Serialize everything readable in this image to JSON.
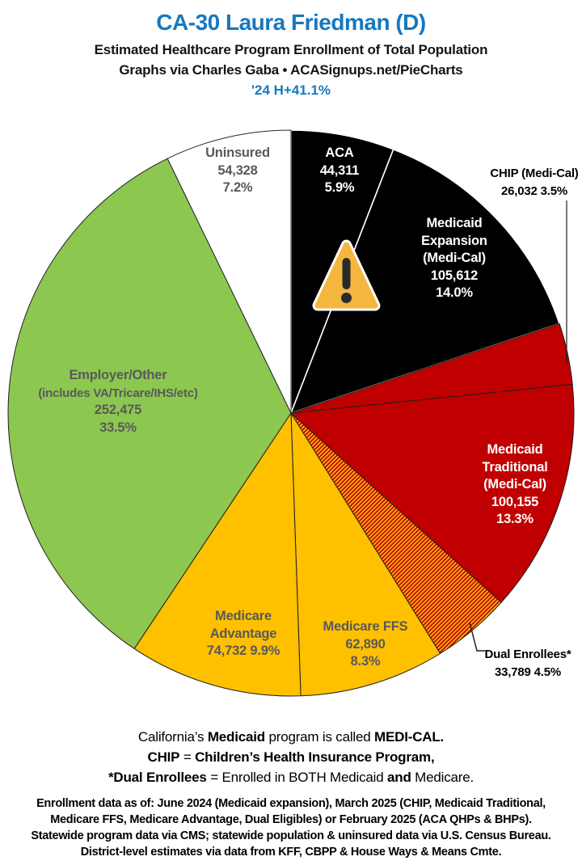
{
  "header": {
    "title": "CA-30 Laura Friedman (D)",
    "subtitle": "Estimated Healthcare Program Enrollment of Total Population",
    "credit": "Graphs via Charles Gaba • ACASignups.net/PieCharts",
    "partisan_lean": "'24 H+41.1%"
  },
  "chart_data": {
    "type": "pie",
    "title": "Estimated Healthcare Program Enrollment of Total Population",
    "units": "people",
    "direction": "clockwise",
    "start_angle_deg": 0,
    "legend_position": "labels-on-slices",
    "palette": {
      "black": "#000000",
      "red": "#C00000",
      "gold": "#FFC000",
      "green": "#8CC750",
      "white": "#FFFFFF",
      "label_gray": "#595959"
    },
    "slices": [
      {
        "id": "aca",
        "name": "ACA",
        "value": 44311,
        "pct": 5.9,
        "color": "#000000",
        "stroke": "#FFFFFF",
        "stroke_width": 1.6,
        "lines": [
          "ACA",
          "44,311",
          "5.9%"
        ]
      },
      {
        "id": "medicaid-expansion",
        "name": "Medicaid Expansion (Medi-Cal)",
        "value": 105612,
        "pct": 14.0,
        "color": "#000000",
        "stroke": "#FFFFFF",
        "stroke_width": 1.6,
        "lines": [
          "Medicaid",
          "Expansion",
          "(Medi-Cal)",
          "105,612",
          "14.0%"
        ]
      },
      {
        "id": "chip",
        "name": "CHIP (Medi-Cal)",
        "value": 26032,
        "pct": 3.5,
        "color": "#C00000",
        "stroke": "#1F1F1F",
        "stroke_width": 1,
        "label_outside": true,
        "lines": [
          "CHIP (Medi-Cal)",
          "26,032 3.5%"
        ]
      },
      {
        "id": "medicaid-traditional",
        "name": "Medicaid Traditional (Medi-Cal)",
        "value": 100155,
        "pct": 13.3,
        "color": "#C00000",
        "stroke": "#1F1F1F",
        "stroke_width": 1,
        "lines": [
          "Medicaid",
          "Traditional",
          "(Medi-Cal)",
          "100,155",
          "13.3%"
        ]
      },
      {
        "id": "dual-enrollees",
        "name": "Dual Enrollees*",
        "value": 33789,
        "pct": 4.5,
        "color": "#C00000",
        "pattern": "diagonal-stripes-gold",
        "stroke": "#1F1F1F",
        "stroke_width": 1,
        "label_outside": true,
        "lines": [
          "Dual Enrollees*",
          "33,789 4.5%"
        ]
      },
      {
        "id": "medicare-ffs",
        "name": "Medicare FFS",
        "value": 62890,
        "pct": 8.3,
        "color": "#FFC000",
        "stroke": "#1F1F1F",
        "stroke_width": 1,
        "lines": [
          "Medicare FFS",
          "62,890",
          "8.3%"
        ]
      },
      {
        "id": "medicare-advantage",
        "name": "Medicare Advantage",
        "value": 74732,
        "pct": 9.9,
        "color": "#FFC000",
        "stroke": "#1F1F1F",
        "stroke_width": 1,
        "lines": [
          "Medicare",
          "Advantage",
          "74,732 9.9%"
        ]
      },
      {
        "id": "employer-other",
        "name": "Employer/Other (includes VA/Tricare/IHS/etc)",
        "value": 252475,
        "pct": 33.5,
        "color": "#8CC750",
        "stroke": "#1F1F1F",
        "stroke_width": 1,
        "lines": [
          "Employer/Other",
          "(includes VA/Tricare/IHS/etc)",
          "252,475",
          "33.5%"
        ]
      },
      {
        "id": "uninsured",
        "name": "Uninsured",
        "value": 54328,
        "pct": 7.2,
        "color": "#FFFFFF",
        "stroke": "#262626",
        "stroke_width": 1,
        "lines": [
          "Uninsured",
          "54,328",
          "7.2%"
        ]
      }
    ],
    "annotations": [
      {
        "icon": "warning-triangle-icon",
        "on": "aca-medicaid-expansion-boundary",
        "fill": "#F5B63F",
        "border": "#FFFFFF",
        "glyph": "!"
      }
    ]
  },
  "notes": {
    "line1": [
      {
        "t": "California’s ",
        "b": 0
      },
      {
        "t": "Medicaid",
        "b": 1
      },
      {
        "t": " program is called ",
        "b": 0
      },
      {
        "t": "MEDI-CAL.",
        "b": 1
      }
    ],
    "line2": [
      {
        "t": "CHIP",
        "b": 1
      },
      {
        "t": " = ",
        "b": 0
      },
      {
        "t": "Children’s Health Insurance Program,",
        "b": 1
      }
    ],
    "line3": [
      {
        "t": "*Dual Enrollees",
        "b": 1
      },
      {
        "t": " = Enrolled in BOTH Medicaid ",
        "b": 0
      },
      {
        "t": "and",
        "b": 1
      },
      {
        "t": " Medicare.",
        "b": 0
      }
    ]
  },
  "footer": {
    "lines": [
      "Enrollment data as of: June 2024 (Medicaid expansion), March 2025 (CHIP, Medicaid Traditional,",
      "Medicare FFS, Medicare Advantage, Dual Eligibles) or February 2025 (ACA QHPs & BHPs).",
      "Statewide program data via CMS; statewide population & uninsured data via U.S. Census Bureau.",
      "District-level estimates via data from KFF, CBPP & House Ways & Means Cmte."
    ]
  }
}
